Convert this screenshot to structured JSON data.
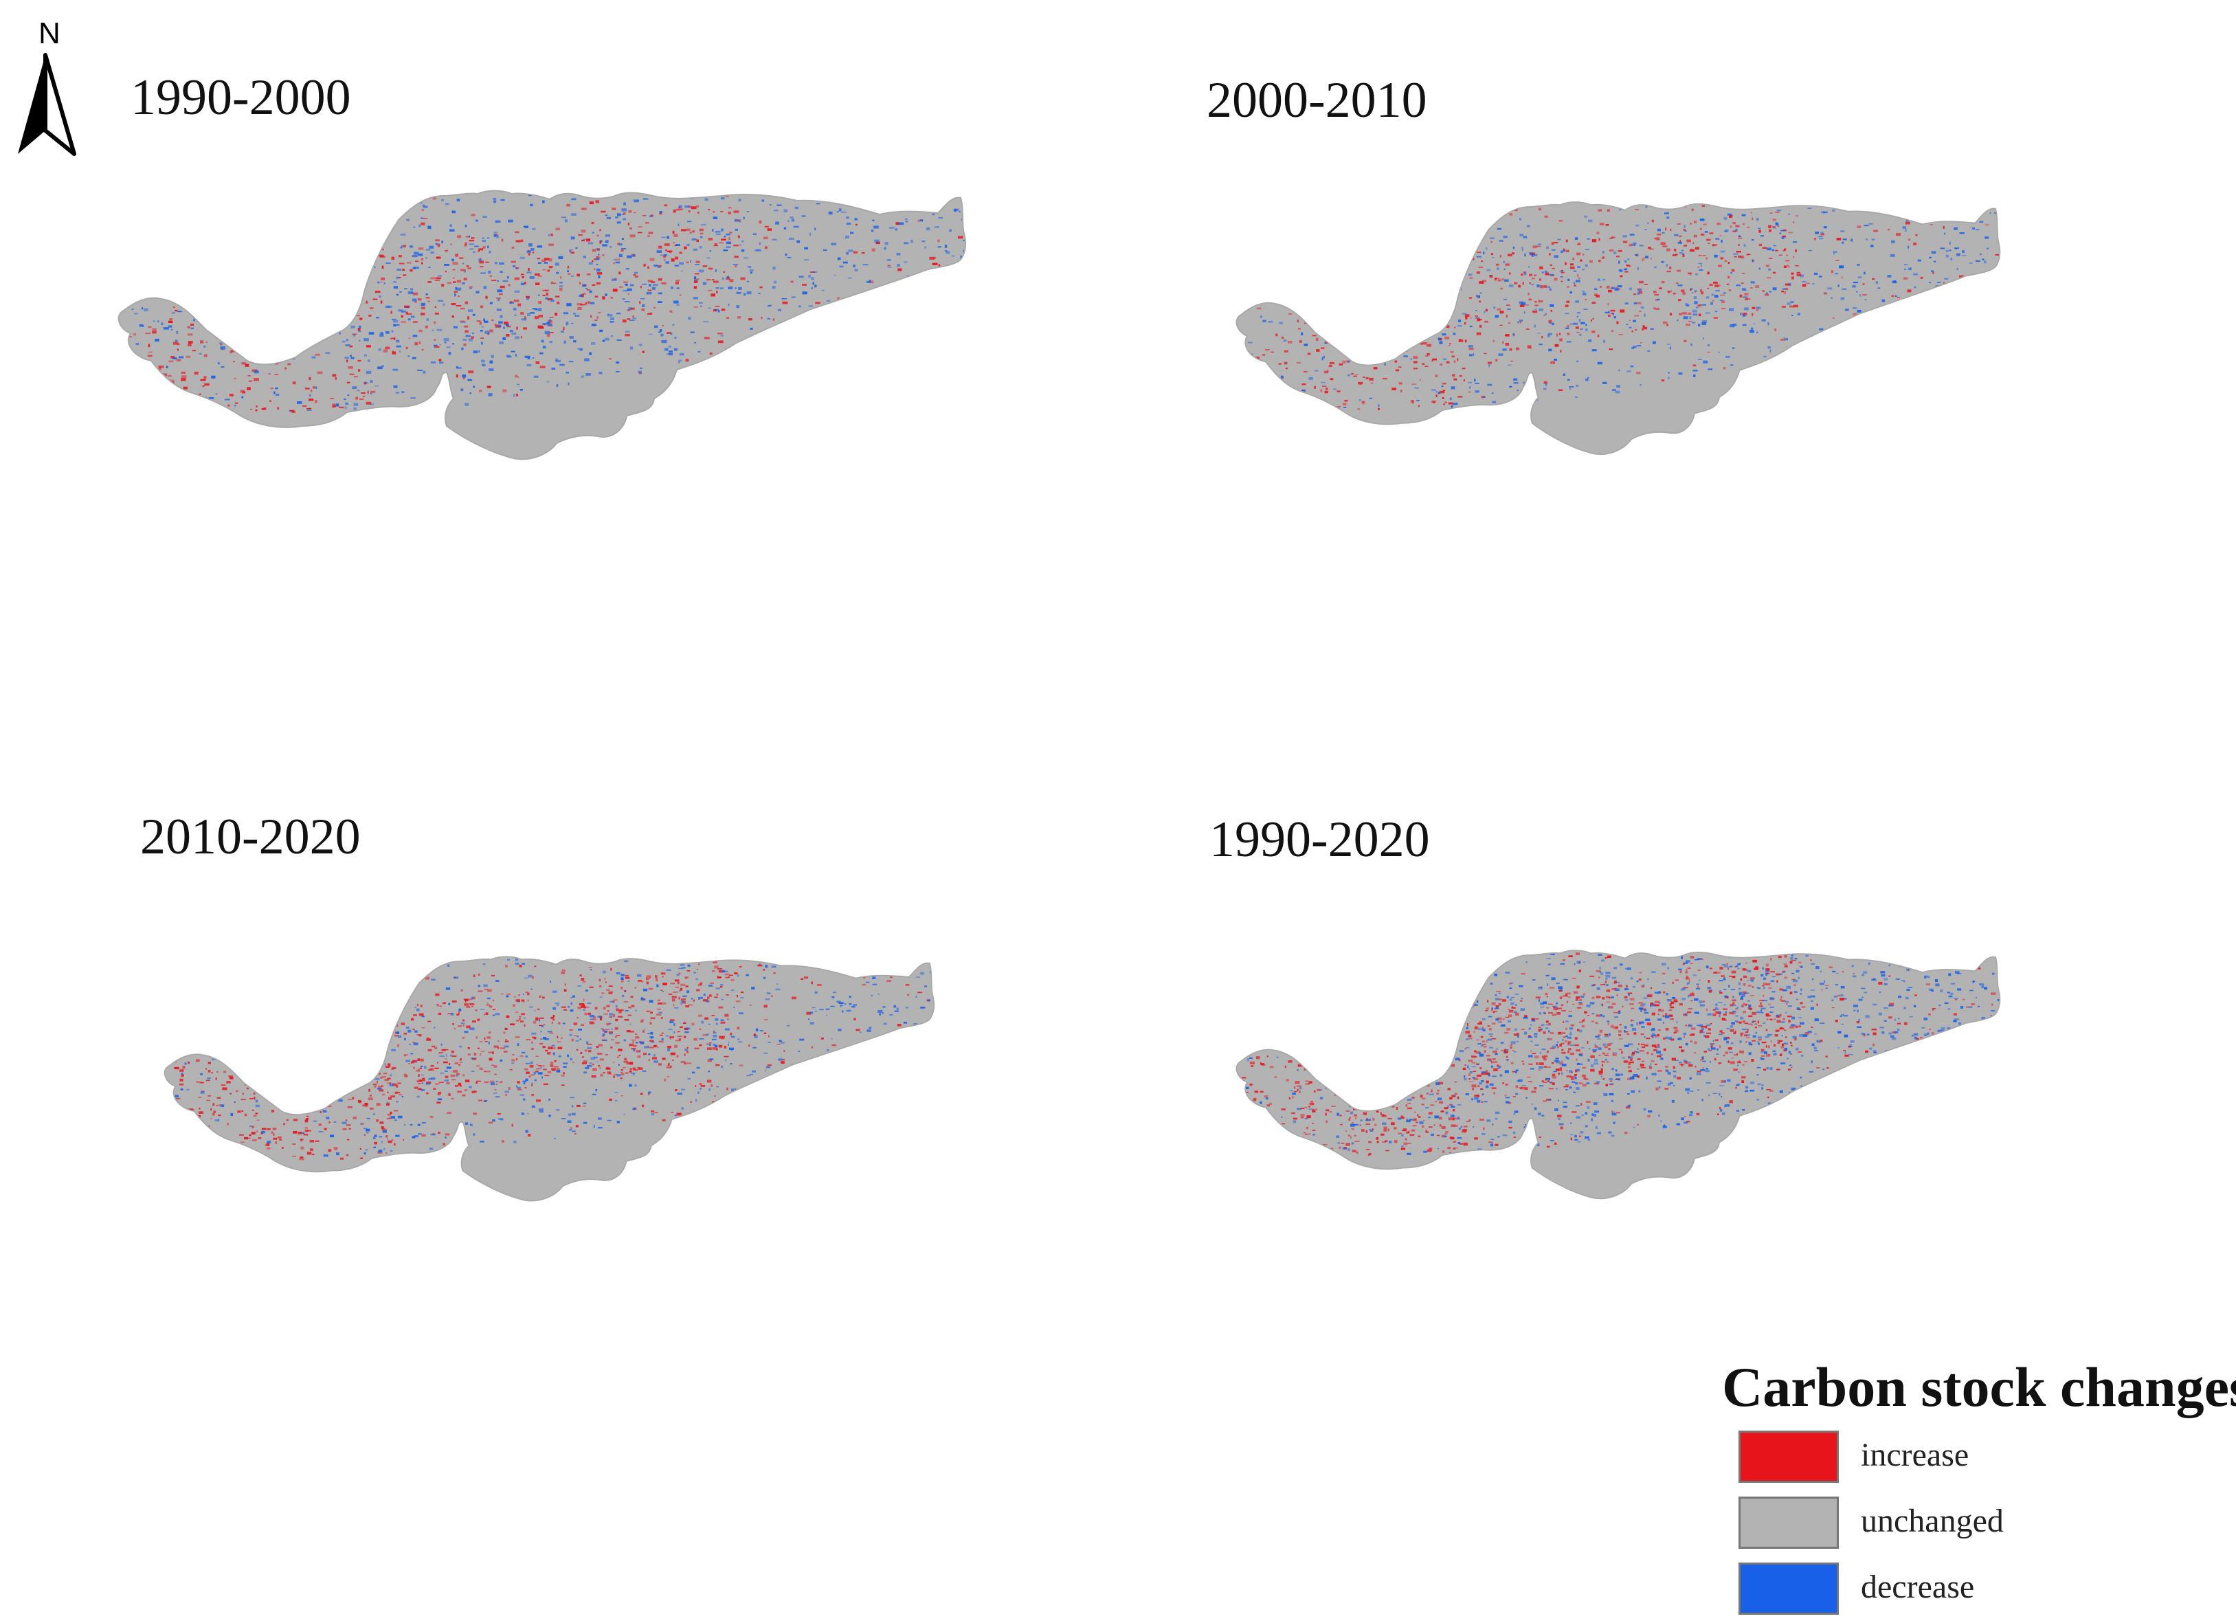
{
  "north_arrow": {
    "letter": "N"
  },
  "panels": [
    {
      "id": "p1",
      "title": "1990-2000",
      "pattern": {
        "red": 0.55,
        "blue": 0.75
      }
    },
    {
      "id": "p2",
      "title": "2000-2010",
      "pattern": {
        "red": 0.55,
        "blue": 0.55
      }
    },
    {
      "id": "p3",
      "title": "2010-2020",
      "pattern": {
        "red": 0.85,
        "blue": 0.55
      }
    },
    {
      "id": "p4",
      "title": "1990-2020",
      "pattern": {
        "red": 1.0,
        "blue": 1.0
      }
    }
  ],
  "legend": {
    "title": "Carbon stock changes",
    "items": [
      {
        "label": "increase",
        "color": "#e8141c"
      },
      {
        "label": "unchanged",
        "color": "#b3b3b3"
      },
      {
        "label": "decrease",
        "color": "#1860e8"
      }
    ]
  },
  "colors": {
    "unchanged": "#b3b3b3",
    "increase": "#e8141c",
    "decrease": "#1860e8"
  }
}
